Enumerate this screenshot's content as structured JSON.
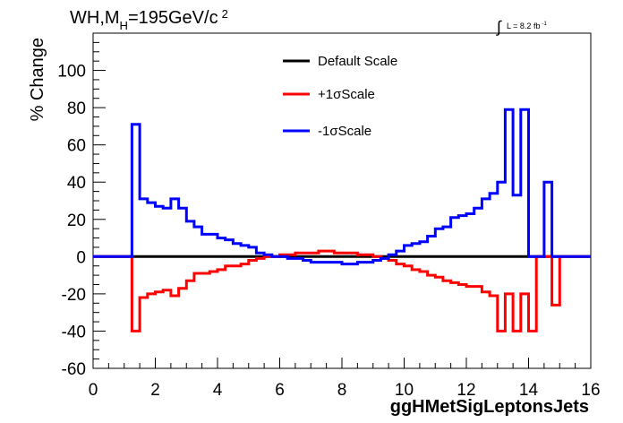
{
  "chart_data": {
    "type": "line",
    "title": {
      "pre": "WH,M",
      "sub": "H",
      "post": "=195GeV/c",
      "sup": "2"
    },
    "lumi": {
      "integral": "∫",
      "text": "L = 8.2 fb",
      "sup": "-1"
    },
    "xlabel": "ggHMetSigLeptonsJets",
    "ylabel": "% Change",
    "xlim": [
      0,
      16
    ],
    "ylim": [
      -60,
      120
    ],
    "xticks": [
      "0",
      "2",
      "4",
      "6",
      "8",
      "10",
      "12",
      "14",
      "16"
    ],
    "yticks": [
      "-60",
      "-40",
      "-20",
      "0",
      "20",
      "40",
      "60",
      "80",
      "100"
    ],
    "legend_position": "top-center",
    "bin_edges": [
      0,
      0.25,
      0.5,
      0.75,
      1.0,
      1.25,
      1.5,
      1.75,
      2.0,
      2.25,
      2.5,
      2.75,
      3.0,
      3.25,
      3.5,
      3.75,
      4.0,
      4.25,
      4.5,
      4.75,
      5.0,
      5.25,
      5.5,
      5.75,
      6.0,
      6.25,
      6.5,
      6.75,
      7.0,
      7.25,
      7.5,
      7.75,
      8.0,
      8.25,
      8.5,
      8.75,
      9.0,
      9.25,
      9.5,
      9.75,
      10.0,
      10.25,
      10.5,
      10.75,
      11.0,
      11.25,
      11.5,
      11.75,
      12.0,
      12.25,
      12.5,
      12.75,
      13.0,
      13.25,
      13.5,
      13.75,
      14.0,
      14.25,
      14.5,
      14.75,
      15.0,
      15.25,
      15.5,
      15.75,
      16.0
    ],
    "series": [
      {
        "name": "Default Scale",
        "color": "#000000",
        "values": [
          0,
          0,
          0,
          0,
          0,
          0,
          0,
          0,
          0,
          0,
          0,
          0,
          0,
          0,
          0,
          0,
          0,
          0,
          0,
          0,
          0,
          0,
          0,
          0,
          0,
          0,
          0,
          0,
          0,
          0,
          0,
          0,
          0,
          0,
          0,
          0,
          0,
          0,
          0,
          0,
          0,
          0,
          0,
          0,
          0,
          0,
          0,
          0,
          0,
          0,
          0,
          0,
          0,
          0,
          0,
          0,
          0,
          0,
          0,
          0,
          0,
          0,
          0,
          0
        ]
      },
      {
        "name": "+1σScale",
        "color": "#ff0000",
        "values": [
          0,
          0,
          0,
          0,
          0,
          -40,
          -22,
          -20,
          -19,
          -18,
          -21,
          -17,
          -13,
          -9,
          -9,
          -8,
          -7,
          -5,
          -5,
          -4,
          -2,
          -1,
          0,
          0,
          1,
          1,
          2,
          2,
          2,
          3,
          3,
          2,
          2,
          2,
          1,
          1,
          0,
          -1,
          -2,
          -4,
          -5,
          -7,
          -8,
          -10,
          -11,
          -13,
          -14,
          -15,
          -16,
          -16,
          -19,
          -21,
          -40,
          -20,
          -40,
          -20,
          -40,
          0,
          0,
          -26,
          0,
          0,
          0,
          0
        ]
      },
      {
        "name": "-1σScale",
        "color": "#0000ff",
        "values": [
          0,
          0,
          0,
          0,
          0,
          71,
          31,
          29,
          27,
          26,
          31,
          26,
          19,
          16,
          12,
          12,
          10,
          9,
          7,
          6,
          5,
          2,
          1,
          0,
          0,
          -1,
          -1,
          -2,
          -3,
          -3,
          -3,
          -3,
          -4,
          -4,
          -3,
          -3,
          -2,
          -1,
          1,
          3,
          6,
          7,
          8,
          11,
          15,
          16,
          21,
          22,
          23,
          26,
          31,
          34,
          40,
          79,
          33,
          79,
          0,
          0,
          40,
          0,
          0,
          0,
          0,
          0
        ]
      }
    ]
  }
}
